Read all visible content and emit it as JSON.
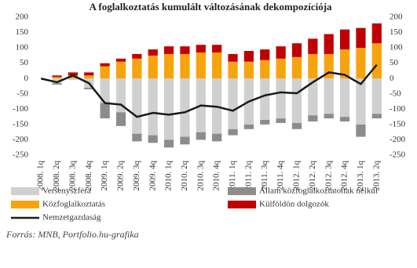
{
  "chart_data": {
    "type": "bar",
    "stacked": true,
    "title": "A foglalkoztatás kumulált változásának dekompozíciója",
    "source": "Forrás: MNB, Portfolio.hu-grafika",
    "categories": [
      "2008. 1q",
      "2008. 2q",
      "2008. 3q",
      "2008. 4q",
      "2009. 1q",
      "2009. 2q",
      "2009. 3q",
      "2009. 4q",
      "2010. 1q",
      "2010. 2q",
      "2010. 3q",
      "2010. 4q",
      "2011. 1q",
      "2011. 2q",
      "2011. 3q",
      "2011. 4q",
      "2012. 1q",
      "2012. 2q",
      "2012. 3q",
      "2012. 4q",
      "2013. 1q",
      "2013. 2q"
    ],
    "ylim": [
      -250,
      200
    ],
    "yticks": [
      -250,
      -200,
      -150,
      -100,
      -50,
      0,
      50,
      100,
      150,
      200
    ],
    "y2lim": [
      -250,
      200
    ],
    "y2ticks": [
      -250,
      -200,
      -150,
      -100,
      -50,
      0,
      50,
      100,
      150,
      200
    ],
    "series": [
      {
        "name": "Versenyszféra",
        "color": "#d0d0d0",
        "kind": "bar",
        "values": [
          0,
          -15,
          -5,
          -30,
          -80,
          -110,
          -180,
          -185,
          -200,
          -190,
          -175,
          -180,
          -165,
          -150,
          -135,
          -130,
          -145,
          -120,
          -115,
          -125,
          -150,
          -115
        ]
      },
      {
        "name": "Állam közfoglalkoztatottak nélkül",
        "color": "#8c8c8c",
        "kind": "bar",
        "values": [
          0,
          -5,
          0,
          -5,
          -50,
          -45,
          -25,
          -25,
          -25,
          -25,
          -25,
          -25,
          -20,
          -15,
          -15,
          -15,
          -20,
          -20,
          -15,
          -15,
          -40,
          -15
        ]
      },
      {
        "name": "Közfoglalkoztatás",
        "color": "#f7a30f",
        "kind": "bar",
        "values": [
          0,
          5,
          10,
          10,
          40,
          55,
          65,
          75,
          80,
          80,
          85,
          85,
          55,
          55,
          60,
          65,
          70,
          80,
          80,
          95,
          100,
          115
        ]
      },
      {
        "name": "Külföldön dolgozók",
        "color": "#c00000",
        "kind": "bar",
        "values": [
          0,
          5,
          10,
          10,
          10,
          10,
          15,
          20,
          25,
          25,
          25,
          25,
          25,
          35,
          35,
          40,
          45,
          50,
          65,
          65,
          65,
          65
        ]
      },
      {
        "name": "Nemzetgazdaság",
        "color": "#1a1a1a",
        "kind": "line",
        "values": [
          0,
          -12,
          10,
          -15,
          -80,
          -85,
          -125,
          -112,
          -118,
          -110,
          -88,
          -92,
          -105,
          -75,
          -55,
          -45,
          -48,
          -12,
          20,
          12,
          -18,
          45
        ]
      }
    ]
  }
}
